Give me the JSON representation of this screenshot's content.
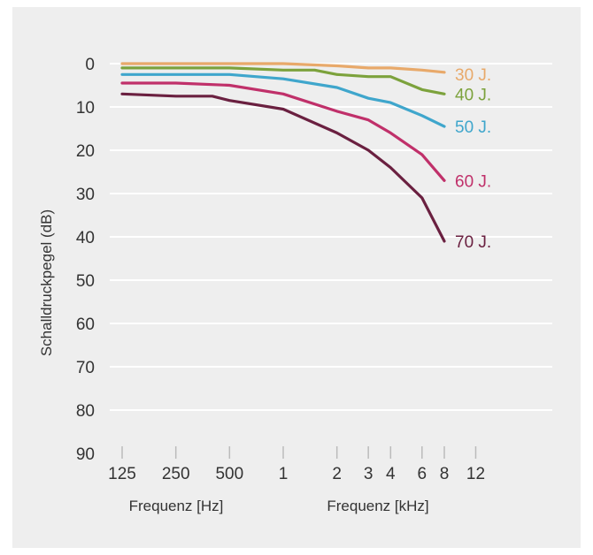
{
  "chart_data": {
    "type": "line",
    "ylabel": "Schalldruckpegel (dB)",
    "xlabel_hz": "Frequenz [Hz]",
    "xlabel_khz": "Frequenz [kHz]",
    "ylim": [
      0,
      90
    ],
    "y_ticks": [
      0,
      10,
      20,
      30,
      40,
      50,
      60,
      70,
      80,
      90
    ],
    "x_tick_labels": [
      "125",
      "250",
      "500",
      "1",
      "2",
      "3",
      "4",
      "6",
      "8",
      "12"
    ],
    "x_tick_values_hz": [
      125,
      250,
      500,
      1000,
      2000,
      3000,
      4000,
      6000,
      8000,
      12000
    ],
    "x_scale": "log",
    "y_inverted": true,
    "grid": "horizontal",
    "series": [
      {
        "name": "30 J.",
        "color": "#e8a96a",
        "points": [
          [
            125,
            0
          ],
          [
            250,
            0
          ],
          [
            500,
            0
          ],
          [
            1000,
            0
          ],
          [
            2000,
            0.5
          ],
          [
            3000,
            1
          ],
          [
            4000,
            1
          ],
          [
            6000,
            1.5
          ],
          [
            8000,
            2
          ]
        ]
      },
      {
        "name": "40 J.",
        "color": "#7ca23c",
        "points": [
          [
            125,
            1
          ],
          [
            250,
            1
          ],
          [
            500,
            1
          ],
          [
            1000,
            1.5
          ],
          [
            1500,
            1.5
          ],
          [
            2000,
            2.5
          ],
          [
            3000,
            3
          ],
          [
            4000,
            3
          ],
          [
            6000,
            6
          ],
          [
            8000,
            7
          ]
        ]
      },
      {
        "name": "50 J.",
        "color": "#3fa6cc",
        "points": [
          [
            125,
            2.5
          ],
          [
            250,
            2.5
          ],
          [
            500,
            2.5
          ],
          [
            1000,
            3.5
          ],
          [
            2000,
            5.5
          ],
          [
            3000,
            8
          ],
          [
            4000,
            9
          ],
          [
            6000,
            12
          ],
          [
            8000,
            14.5
          ]
        ]
      },
      {
        "name": "60 J.",
        "color": "#c0306a",
        "points": [
          [
            125,
            4.5
          ],
          [
            250,
            4.5
          ],
          [
            500,
            5
          ],
          [
            1000,
            7
          ],
          [
            2000,
            11
          ],
          [
            3000,
            13
          ],
          [
            4000,
            16
          ],
          [
            6000,
            21
          ],
          [
            8000,
            27
          ]
        ]
      },
      {
        "name": "70 J.",
        "color": "#6a2040",
        "points": [
          [
            125,
            7
          ],
          [
            250,
            7.5
          ],
          [
            400,
            7.5
          ],
          [
            500,
            8.5
          ],
          [
            1000,
            10.5
          ],
          [
            2000,
            16
          ],
          [
            3000,
            20
          ],
          [
            4000,
            24
          ],
          [
            6000,
            31
          ],
          [
            8000,
            41
          ]
        ]
      }
    ]
  }
}
